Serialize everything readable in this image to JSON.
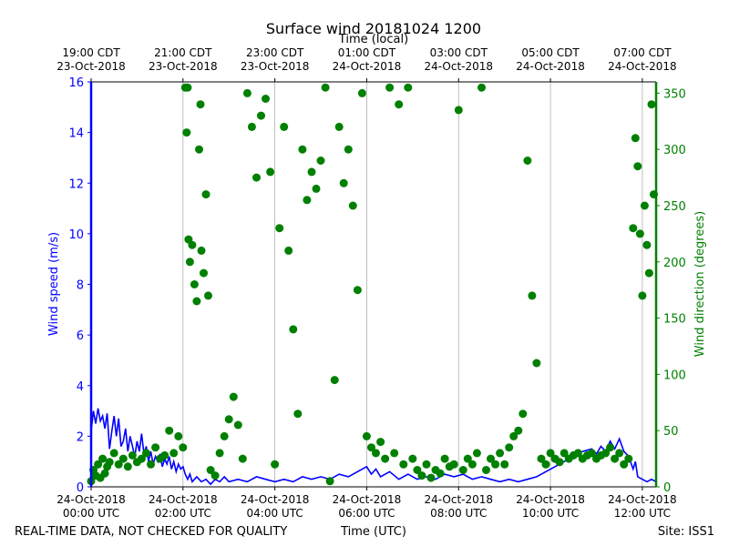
{
  "chart_data": {
    "type": "scatter",
    "title": "Surface wind 20181024 1200",
    "top_axis_label": "Time (local)",
    "xlabel": "Time (UTC)",
    "ylabel": "Wind speed (m/s)",
    "y2label": "Wind direction (degrees)",
    "footer_left": "REAL-TIME DATA, NOT CHECKED FOR QUALITY",
    "footer_right": "Site: ISS1",
    "xlim_hours": [
      0,
      12.3
    ],
    "ylim": [
      0,
      16
    ],
    "y2lim": [
      0,
      360
    ],
    "yticks": [
      0,
      2,
      4,
      6,
      8,
      10,
      12,
      14,
      16
    ],
    "y2ticks": [
      0,
      50,
      100,
      150,
      200,
      250,
      300,
      350
    ],
    "xticks_utc": [
      {
        "h": 0,
        "date": "24-Oct-2018",
        "time": "00:00 UTC"
      },
      {
        "h": 2,
        "date": "24-Oct-2018",
        "time": "02:00 UTC"
      },
      {
        "h": 4,
        "date": "24-Oct-2018",
        "time": "04:00 UTC"
      },
      {
        "h": 6,
        "date": "24-Oct-2018",
        "time": "06:00 UTC"
      },
      {
        "h": 8,
        "date": "24-Oct-2018",
        "time": "08:00 UTC"
      },
      {
        "h": 10,
        "date": "24-Oct-2018",
        "time": "10:00 UTC"
      },
      {
        "h": 12,
        "date": "24-Oct-2018",
        "time": "12:00 UTC"
      }
    ],
    "xticks_local": [
      {
        "h": 0,
        "time": "19:00 CDT",
        "date": "23-Oct-2018"
      },
      {
        "h": 2,
        "time": "21:00 CDT",
        "date": "23-Oct-2018"
      },
      {
        "h": 4,
        "time": "23:00 CDT",
        "date": "23-Oct-2018"
      },
      {
        "h": 6,
        "time": "01:00 CDT",
        "date": "24-Oct-2018"
      },
      {
        "h": 8,
        "time": "03:00 CDT",
        "date": "24-Oct-2018"
      },
      {
        "h": 10,
        "time": "05:00 CDT",
        "date": "24-Oct-2018"
      },
      {
        "h": 12,
        "time": "07:00 CDT",
        "date": "24-Oct-2018"
      }
    ],
    "grid": "vertical",
    "series": [
      {
        "name": "Wind speed",
        "axis": "left",
        "style": "line",
        "color": "#0000ff",
        "points": [
          [
            0,
            2.2
          ],
          [
            0.05,
            3.0
          ],
          [
            0.1,
            2.5
          ],
          [
            0.15,
            3.1
          ],
          [
            0.2,
            2.6
          ],
          [
            0.25,
            2.8
          ],
          [
            0.3,
            2.3
          ],
          [
            0.35,
            2.9
          ],
          [
            0.4,
            1.5
          ],
          [
            0.45,
            2.2
          ],
          [
            0.5,
            2.8
          ],
          [
            0.55,
            2.0
          ],
          [
            0.6,
            2.7
          ],
          [
            0.65,
            1.6
          ],
          [
            0.7,
            1.8
          ],
          [
            0.75,
            2.3
          ],
          [
            0.8,
            1.4
          ],
          [
            0.85,
            2.0
          ],
          [
            0.9,
            1.6
          ],
          [
            0.95,
            1.2
          ],
          [
            1.0,
            1.8
          ],
          [
            1.05,
            1.4
          ],
          [
            1.1,
            2.1
          ],
          [
            1.15,
            1.3
          ],
          [
            1.2,
            1.6
          ],
          [
            1.25,
            1.0
          ],
          [
            1.3,
            1.4
          ],
          [
            1.35,
            0.9
          ],
          [
            1.4,
            1.2
          ],
          [
            1.45,
            1.0
          ],
          [
            1.5,
            1.3
          ],
          [
            1.55,
            0.8
          ],
          [
            1.6,
            1.1
          ],
          [
            1.65,
            0.9
          ],
          [
            1.7,
            1.2
          ],
          [
            1.75,
            0.7
          ],
          [
            1.8,
            1.0
          ],
          [
            1.85,
            0.6
          ],
          [
            1.9,
            0.9
          ],
          [
            1.95,
            0.7
          ],
          [
            2.0,
            0.8
          ],
          [
            2.05,
            0.5
          ],
          [
            2.1,
            0.3
          ],
          [
            2.15,
            0.5
          ],
          [
            2.2,
            0.2
          ],
          [
            2.3,
            0.4
          ],
          [
            2.4,
            0.2
          ],
          [
            2.5,
            0.3
          ],
          [
            2.6,
            0.1
          ],
          [
            2.7,
            0.3
          ],
          [
            2.8,
            0.2
          ],
          [
            2.9,
            0.4
          ],
          [
            3.0,
            0.2
          ],
          [
            3.2,
            0.3
          ],
          [
            3.4,
            0.2
          ],
          [
            3.6,
            0.4
          ],
          [
            3.8,
            0.3
          ],
          [
            4.0,
            0.2
          ],
          [
            4.2,
            0.3
          ],
          [
            4.4,
            0.2
          ],
          [
            4.6,
            0.4
          ],
          [
            4.8,
            0.3
          ],
          [
            5.0,
            0.4
          ],
          [
            5.2,
            0.3
          ],
          [
            5.4,
            0.5
          ],
          [
            5.6,
            0.4
          ],
          [
            5.8,
            0.6
          ],
          [
            6.0,
            0.8
          ],
          [
            6.1,
            0.5
          ],
          [
            6.2,
            0.7
          ],
          [
            6.3,
            0.4
          ],
          [
            6.5,
            0.6
          ],
          [
            6.7,
            0.3
          ],
          [
            6.9,
            0.5
          ],
          [
            7.1,
            0.3
          ],
          [
            7.3,
            0.4
          ],
          [
            7.5,
            0.3
          ],
          [
            7.7,
            0.5
          ],
          [
            7.9,
            0.4
          ],
          [
            8.1,
            0.5
          ],
          [
            8.3,
            0.3
          ],
          [
            8.5,
            0.4
          ],
          [
            8.7,
            0.3
          ],
          [
            8.9,
            0.2
          ],
          [
            9.1,
            0.3
          ],
          [
            9.3,
            0.2
          ],
          [
            9.5,
            0.3
          ],
          [
            9.7,
            0.4
          ],
          [
            9.9,
            0.6
          ],
          [
            10.1,
            0.8
          ],
          [
            10.3,
            1.0
          ],
          [
            10.5,
            1.2
          ],
          [
            10.7,
            1.4
          ],
          [
            10.9,
            1.5
          ],
          [
            11.0,
            1.3
          ],
          [
            11.1,
            1.6
          ],
          [
            11.2,
            1.4
          ],
          [
            11.3,
            1.8
          ],
          [
            11.4,
            1.5
          ],
          [
            11.5,
            1.9
          ],
          [
            11.6,
            1.4
          ],
          [
            11.7,
            1.2
          ],
          [
            11.8,
            0.7
          ],
          [
            11.85,
            1.0
          ],
          [
            11.9,
            0.4
          ],
          [
            12.0,
            0.3
          ],
          [
            12.1,
            0.2
          ],
          [
            12.2,
            0.3
          ],
          [
            12.3,
            0.2
          ]
        ]
      },
      {
        "name": "Wind direction",
        "axis": "right",
        "style": "markers",
        "color": "#008000",
        "points": [
          [
            0,
            5
          ],
          [
            0.05,
            15
          ],
          [
            0.1,
            10
          ],
          [
            0.15,
            20
          ],
          [
            0.2,
            8
          ],
          [
            0.25,
            25
          ],
          [
            0.3,
            12
          ],
          [
            0.35,
            18
          ],
          [
            0.4,
            22
          ],
          [
            0.5,
            30
          ],
          [
            0.6,
            20
          ],
          [
            0.7,
            25
          ],
          [
            0.8,
            18
          ],
          [
            0.9,
            28
          ],
          [
            1.0,
            22
          ],
          [
            1.1,
            25
          ],
          [
            1.2,
            30
          ],
          [
            1.3,
            20
          ],
          [
            1.4,
            35
          ],
          [
            1.5,
            25
          ],
          [
            1.6,
            28
          ],
          [
            1.7,
            50
          ],
          [
            1.8,
            30
          ],
          [
            1.9,
            45
          ],
          [
            2.0,
            35
          ],
          [
            2.05,
            355
          ],
          [
            2.1,
            355
          ],
          [
            2.08,
            315
          ],
          [
            2.12,
            220
          ],
          [
            2.15,
            200
          ],
          [
            2.2,
            215
          ],
          [
            2.25,
            180
          ],
          [
            2.3,
            165
          ],
          [
            2.35,
            300
          ],
          [
            2.38,
            340
          ],
          [
            2.4,
            210
          ],
          [
            2.45,
            190
          ],
          [
            2.5,
            260
          ],
          [
            2.55,
            170
          ],
          [
            2.6,
            15
          ],
          [
            2.7,
            10
          ],
          [
            2.8,
            30
          ],
          [
            2.9,
            45
          ],
          [
            3.0,
            60
          ],
          [
            3.1,
            80
          ],
          [
            3.2,
            55
          ],
          [
            3.3,
            25
          ],
          [
            3.4,
            350
          ],
          [
            3.5,
            320
          ],
          [
            3.6,
            275
          ],
          [
            3.7,
            330
          ],
          [
            3.8,
            345
          ],
          [
            3.9,
            280
          ],
          [
            4.0,
            20
          ],
          [
            4.1,
            230
          ],
          [
            4.2,
            320
          ],
          [
            4.3,
            210
          ],
          [
            4.4,
            140
          ],
          [
            4.5,
            65
          ],
          [
            4.6,
            300
          ],
          [
            4.7,
            255
          ],
          [
            4.8,
            280
          ],
          [
            4.9,
            265
          ],
          [
            5.0,
            290
          ],
          [
            5.1,
            355
          ],
          [
            5.2,
            5
          ],
          [
            5.3,
            95
          ],
          [
            5.4,
            320
          ],
          [
            5.5,
            270
          ],
          [
            5.6,
            300
          ],
          [
            5.7,
            250
          ],
          [
            5.8,
            175
          ],
          [
            5.9,
            350
          ],
          [
            6.0,
            45
          ],
          [
            6.1,
            35
          ],
          [
            6.2,
            30
          ],
          [
            6.3,
            40
          ],
          [
            6.4,
            25
          ],
          [
            6.5,
            355
          ],
          [
            6.6,
            30
          ],
          [
            6.7,
            340
          ],
          [
            6.8,
            20
          ],
          [
            6.9,
            355
          ],
          [
            7.0,
            25
          ],
          [
            7.1,
            15
          ],
          [
            7.2,
            10
          ],
          [
            7.3,
            20
          ],
          [
            7.4,
            8
          ],
          [
            7.5,
            15
          ],
          [
            7.6,
            12
          ],
          [
            7.7,
            25
          ],
          [
            7.8,
            18
          ],
          [
            7.9,
            20
          ],
          [
            8.0,
            335
          ],
          [
            8.1,
            15
          ],
          [
            8.2,
            25
          ],
          [
            8.3,
            20
          ],
          [
            8.4,
            30
          ],
          [
            8.5,
            355
          ],
          [
            8.6,
            15
          ],
          [
            8.7,
            25
          ],
          [
            8.8,
            20
          ],
          [
            8.9,
            30
          ],
          [
            9.0,
            20
          ],
          [
            9.1,
            35
          ],
          [
            9.2,
            45
          ],
          [
            9.3,
            50
          ],
          [
            9.4,
            65
          ],
          [
            9.5,
            290
          ],
          [
            9.6,
            170
          ],
          [
            9.7,
            110
          ],
          [
            9.8,
            25
          ],
          [
            9.9,
            20
          ],
          [
            10.0,
            30
          ],
          [
            10.1,
            25
          ],
          [
            10.2,
            22
          ],
          [
            10.3,
            30
          ],
          [
            10.4,
            25
          ],
          [
            10.5,
            28
          ],
          [
            10.6,
            30
          ],
          [
            10.7,
            25
          ],
          [
            10.8,
            28
          ],
          [
            10.9,
            30
          ],
          [
            11.0,
            25
          ],
          [
            11.1,
            28
          ],
          [
            11.2,
            30
          ],
          [
            11.3,
            35
          ],
          [
            11.4,
            25
          ],
          [
            11.5,
            30
          ],
          [
            11.6,
            20
          ],
          [
            11.7,
            25
          ],
          [
            11.8,
            230
          ],
          [
            11.85,
            310
          ],
          [
            11.9,
            285
          ],
          [
            11.95,
            225
          ],
          [
            12.0,
            170
          ],
          [
            12.05,
            250
          ],
          [
            12.1,
            215
          ],
          [
            12.15,
            190
          ],
          [
            12.2,
            340
          ],
          [
            12.25,
            260
          ]
        ]
      }
    ]
  }
}
